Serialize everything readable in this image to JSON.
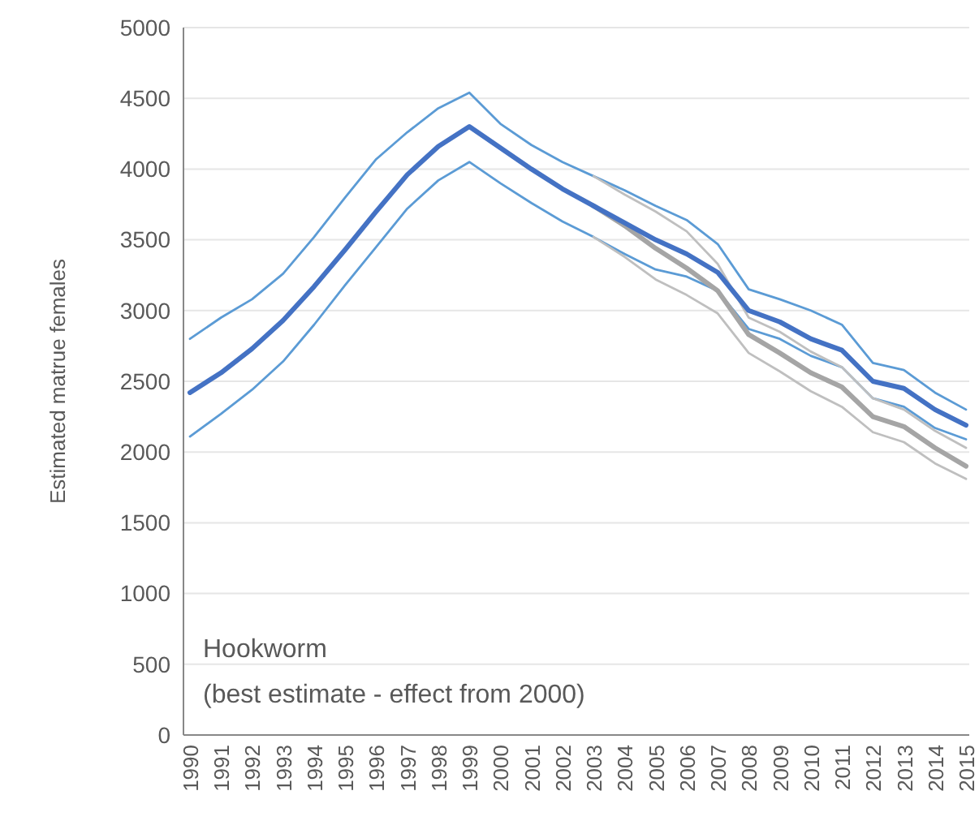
{
  "chart_data": {
    "type": "line",
    "ylabel": "Estimated matrue females",
    "categories": [
      "1990",
      "1991",
      "1992",
      "1993",
      "1994",
      "1995",
      "1996",
      "1997",
      "1998",
      "1999",
      "2000",
      "2001",
      "2002",
      "2003",
      "2004",
      "2005",
      "2006",
      "2007",
      "2008",
      "2009",
      "2010",
      "2011",
      "2012",
      "2013",
      "2014",
      "2015"
    ],
    "series": [
      {
        "color": "#5b9bd5",
        "values": [
          2800,
          2950,
          3080,
          3260,
          3520,
          3800,
          4070,
          4260,
          4430,
          4540,
          4320,
          4170,
          4050,
          3950,
          3850,
          3740,
          3640,
          3470,
          3150,
          3080,
          3000,
          2900,
          2630,
          2580,
          2420,
          2300
        ]
      },
      {
        "color": "#5b9bd5",
        "values": [
          2110,
          2270,
          2440,
          2640,
          2900,
          3180,
          3450,
          3720,
          3920,
          4050,
          3900,
          3760,
          3630,
          3520,
          3400,
          3290,
          3240,
          3140,
          2870,
          2800,
          2680,
          2600,
          2380,
          2320,
          2170,
          2090
        ]
      },
      {
        "color": "#bfbfbf",
        "values": [
          null,
          null,
          null,
          null,
          null,
          null,
          null,
          null,
          null,
          null,
          null,
          null,
          null,
          3950,
          3820,
          3700,
          3560,
          3330,
          2950,
          2850,
          2710,
          2600,
          2380,
          2300,
          2150,
          2030
        ]
      },
      {
        "color": "#bfbfbf",
        "values": [
          null,
          null,
          null,
          null,
          null,
          null,
          null,
          null,
          null,
          null,
          null,
          null,
          null,
          3520,
          3380,
          3220,
          3110,
          2980,
          2700,
          2570,
          2430,
          2320,
          2140,
          2070,
          1920,
          1810
        ]
      },
      {
        "color": "#a5a5a5",
        "values": [
          null,
          null,
          null,
          null,
          null,
          null,
          null,
          null,
          null,
          null,
          null,
          null,
          null,
          3740,
          3600,
          3440,
          3300,
          3140,
          2830,
          2700,
          2560,
          2460,
          2250,
          2180,
          2030,
          1900
        ]
      },
      {
        "color": "#4472c4",
        "values": [
          2420,
          2560,
          2730,
          2930,
          3170,
          3430,
          3700,
          3960,
          4160,
          4300,
          4150,
          4000,
          3860,
          3740,
          3620,
          3500,
          3400,
          3270,
          3000,
          2920,
          2800,
          2720,
          2500,
          2450,
          2300,
          2190
        ]
      }
    ],
    "ylim": [
      0,
      5000
    ],
    "yticks": [
      0,
      500,
      1000,
      1500,
      2000,
      2500,
      3000,
      3500,
      4000,
      4500,
      5000
    ],
    "grid": "y",
    "marker": "none",
    "line_style": "solid",
    "annotations": [
      "Hookworm",
      "(best estimate - effect from 2000)"
    ]
  }
}
